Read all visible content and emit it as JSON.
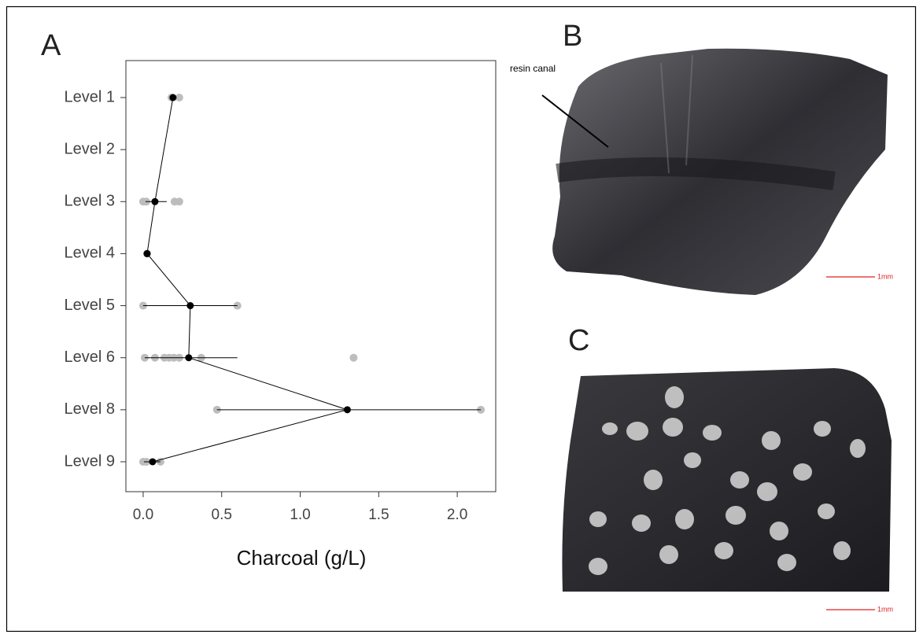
{
  "panel_labels": [
    "A",
    "B",
    "C"
  ],
  "annotations": {
    "resin_canal": "resin canal",
    "scale_b": "1mm",
    "scale_c": "1mm"
  },
  "chart_data": {
    "type": "dot",
    "xlabel": "Charcoal (g/L)",
    "categories": [
      "Level 1",
      "Level 2",
      "Level 3",
      "Level 4",
      "Level 5",
      "Level 6",
      "Level 8",
      "Level 9"
    ],
    "xlim": [
      -0.11,
      2.245
    ],
    "xticks": [
      {
        "value": 0,
        "label": "0.0"
      },
      0.5,
      {
        "value": 1,
        "label": "1.0"
      },
      1.5,
      {
        "value": 2,
        "label": "2.0"
      }
    ],
    "connect_gaps": true,
    "samples": {
      "color": "#bdbdbd",
      "values": [
        [
          0.18,
          0.23
        ],
        [],
        [
          0,
          0.02,
          0.2,
          0.23
        ],
        [
          0.025
        ],
        [
          0,
          0.6
        ],
        [
          0.01,
          0.075,
          0.135,
          0.165,
          0.195,
          0.23,
          0.37,
          1.34
        ],
        [
          0.47,
          2.15
        ],
        [
          0,
          0.02,
          0.11
        ]
      ]
    },
    "means": {
      "color": "#000000",
      "values": [
        0.19,
        null,
        0.075,
        0.025,
        0.3,
        0.29,
        1.3,
        0.06
      ],
      "lower": [
        null,
        null,
        0.015,
        null,
        0,
        0.01,
        0.47,
        0.005
      ],
      "upper": [
        null,
        null,
        0.15,
        null,
        0.6,
        0.6,
        2.15,
        0.11
      ]
    }
  }
}
